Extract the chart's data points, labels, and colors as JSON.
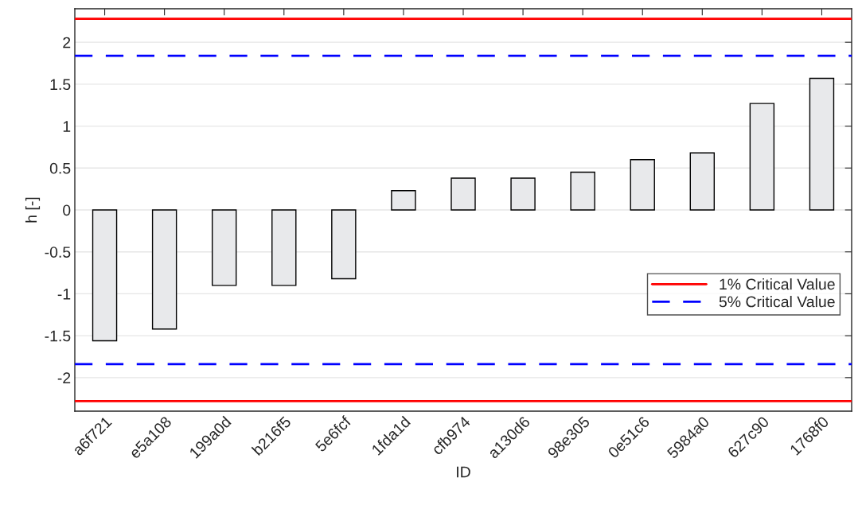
{
  "chart_data": {
    "type": "bar",
    "xlabel": "ID",
    "ylabel": "h [-]",
    "categories": [
      "a6f721",
      "e5a108",
      "199a0d",
      "b216f5",
      "5e6fcf",
      "1fda1d",
      "cfb974",
      "a130d6",
      "98e305",
      "0e51c6",
      "5984a0",
      "627c90",
      "1768f0"
    ],
    "values": [
      -1.56,
      -1.42,
      -0.9,
      -0.9,
      -0.82,
      0.23,
      0.38,
      0.38,
      0.45,
      0.6,
      0.68,
      1.27,
      1.57
    ],
    "color": "#e8e9eb",
    "ylim": [
      -2.4,
      2.4
    ],
    "yticks": [
      -2,
      -1.5,
      -1,
      -0.5,
      0,
      0.5,
      1,
      1.5,
      2
    ],
    "grid": "y",
    "legend": "lower right",
    "ref_lines": [
      {
        "axis": "y",
        "value": 2.28,
        "label": "1% Critical Value",
        "color": "#ff0000",
        "line_style": "solid"
      },
      {
        "axis": "y",
        "value": -2.28,
        "color": "#ff0000",
        "line_style": "solid"
      },
      {
        "axis": "y",
        "value": 1.84,
        "label": "5% Critical Value",
        "color": "#0000ff",
        "line_style": "dashed"
      },
      {
        "axis": "y",
        "value": -1.84,
        "color": "#0000ff",
        "line_style": "dashed"
      }
    ]
  }
}
